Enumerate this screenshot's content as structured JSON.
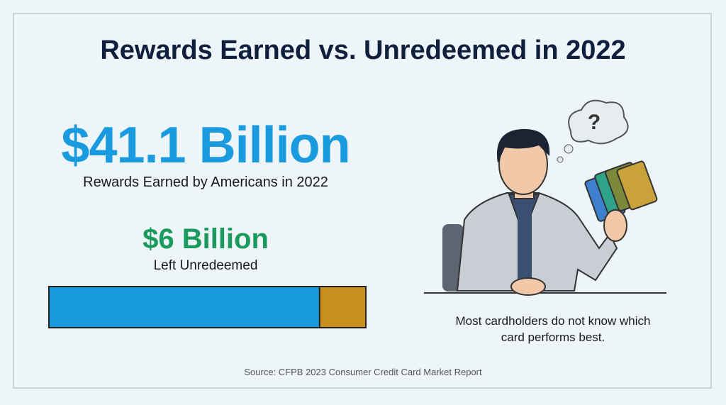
{
  "title": "Rewards Earned vs. Unredeemed in 2022",
  "earned": {
    "value": 41.1,
    "label": "$41.1 Billion",
    "caption": "Rewards Earned by Americans in 2022",
    "color": "#1a9be0"
  },
  "unredeemed": {
    "value": 6,
    "label": "$6 Billion",
    "caption": "Left Unredeemed",
    "color": "#c98f1f"
  },
  "thought": "?",
  "note": "Most cardholders do not know which card performs best.",
  "source": "Source: CFPB 2023 Consumer Credit Card Market Report"
}
